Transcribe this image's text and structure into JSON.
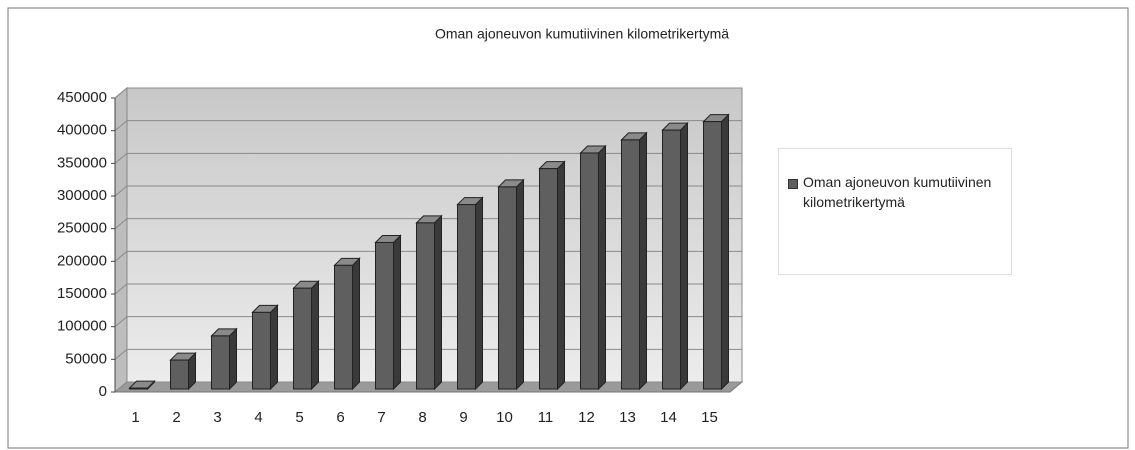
{
  "chart_data": {
    "type": "bar3d",
    "title": "Oman ajoneuvon kumutiivinen kilometrikertymä",
    "categories": [
      "1",
      "2",
      "3",
      "4",
      "5",
      "6",
      "7",
      "8",
      "9",
      "10",
      "11",
      "12",
      "13",
      "14",
      "15"
    ],
    "series": [
      {
        "name": "Oman ajoneuvon kumutiivinen kilometrikertymä",
        "color": "#5f5f5f",
        "values": [
          12000,
          55000,
          92000,
          128000,
          165000,
          200000,
          235000,
          265000,
          293000,
          320000,
          348000,
          372000,
          392000,
          407000,
          420000
        ]
      }
    ],
    "ylim": [
      0,
      450000
    ],
    "yticks": [
      0,
      50000,
      100000,
      150000,
      200000,
      250000,
      300000,
      350000,
      400000,
      450000
    ],
    "grid": true,
    "legend": "right"
  }
}
